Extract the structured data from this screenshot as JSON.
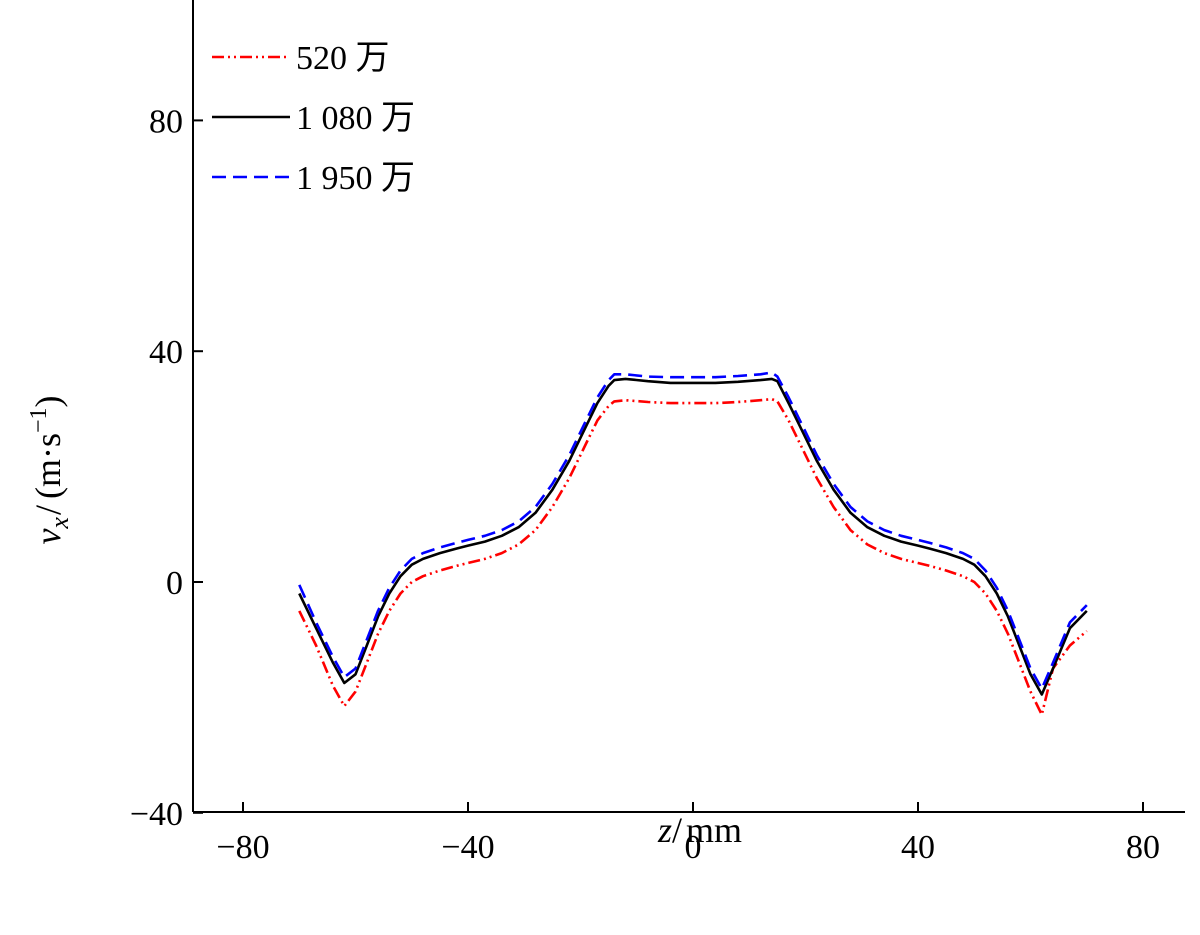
{
  "chart_data": {
    "type": "line",
    "title": "",
    "xlabel": {
      "var": "z",
      "sep": "/",
      "unit": "mm"
    },
    "ylabel": {
      "var": "v",
      "sub": "x",
      "sep": "/",
      "unit_open": "(m·s",
      "unit_exp": "−1",
      "unit_close": ")"
    },
    "xlim": [
      -90,
      90
    ],
    "ylim": [
      -40,
      100
    ],
    "xticks": [
      -80,
      -40,
      0,
      40,
      80
    ],
    "xtick_labels": [
      "−80",
      "−40",
      "0",
      "40",
      "80"
    ],
    "yticks": [
      -40,
      0,
      40,
      80
    ],
    "ytick_labels": [
      "−40",
      "0",
      "40",
      "80"
    ],
    "grid": false,
    "legend_position": "top-left",
    "series": [
      {
        "name": "520 万",
        "color": "#ff0000",
        "dash": "dash-dot-dot",
        "x": [
          -70,
          -67,
          -64,
          -62,
          -60,
          -58,
          -56,
          -54,
          -52,
          -50,
          -48,
          -45,
          -42,
          -40,
          -37,
          -34,
          -31,
          -28,
          -25,
          -22,
          -19,
          -17,
          -15,
          -14,
          -12,
          -8,
          -4,
          0,
          4,
          8,
          12,
          14,
          15,
          17,
          19,
          22,
          25,
          28,
          31,
          34,
          37,
          40,
          42,
          45,
          48,
          50,
          52,
          54,
          56,
          58,
          60,
          62,
          64,
          67,
          70
        ],
        "y": [
          -5,
          -11,
          -18,
          -21.5,
          -19,
          -14,
          -9,
          -5,
          -2,
          0,
          1,
          2,
          2.8,
          3.3,
          4,
          5,
          6.5,
          9,
          13,
          18,
          24,
          28,
          30.5,
          31.3,
          31.5,
          31.2,
          31,
          31,
          31,
          31.2,
          31.5,
          31.7,
          31.3,
          28,
          24,
          18,
          13,
          9,
          6.5,
          5,
          4,
          3.3,
          2.8,
          2,
          1,
          0,
          -2,
          -5,
          -9,
          -14,
          -19,
          -23,
          -15,
          -11,
          -8.5
        ]
      },
      {
        "name": "1 080 万",
        "color": "#000000",
        "dash": "solid",
        "x": [
          -70,
          -67,
          -64,
          -62,
          -60,
          -58,
          -56,
          -54,
          -52,
          -50,
          -48,
          -45,
          -42,
          -40,
          -37,
          -34,
          -31,
          -28,
          -25,
          -22,
          -19,
          -17,
          -15,
          -14,
          -12,
          -8,
          -4,
          0,
          4,
          8,
          12,
          14,
          15,
          17,
          19,
          22,
          25,
          28,
          31,
          34,
          37,
          40,
          42,
          45,
          48,
          50,
          52,
          54,
          56,
          58,
          60,
          62,
          64,
          67,
          70
        ],
        "y": [
          -2,
          -8,
          -14,
          -17.5,
          -16,
          -11,
          -6,
          -2,
          1,
          3,
          4,
          5,
          5.8,
          6.3,
          7,
          8,
          9.5,
          12,
          16,
          21,
          27,
          31,
          34,
          35,
          35.2,
          34.8,
          34.5,
          34.5,
          34.5,
          34.7,
          35,
          35.2,
          34.8,
          31,
          27,
          21,
          16,
          12,
          9.5,
          8,
          7,
          6.3,
          5.8,
          5,
          4,
          3,
          1,
          -2,
          -6,
          -11,
          -16,
          -19.5,
          -15,
          -8,
          -5
        ]
      },
      {
        "name": "1 950 万",
        "color": "#0000ff",
        "dash": "dashed",
        "x": [
          -70,
          -67,
          -64,
          -62,
          -60,
          -58,
          -56,
          -54,
          -52,
          -50,
          -48,
          -45,
          -42,
          -40,
          -37,
          -34,
          -31,
          -28,
          -25,
          -22,
          -19,
          -17,
          -15,
          -14,
          -12,
          -8,
          -4,
          0,
          4,
          8,
          12,
          14,
          15,
          17,
          19,
          22,
          25,
          28,
          31,
          34,
          37,
          40,
          42,
          45,
          48,
          50,
          52,
          54,
          56,
          58,
          60,
          62,
          64,
          67,
          70
        ],
        "y": [
          -0.5,
          -7,
          -13,
          -16.5,
          -15,
          -10,
          -5,
          -1,
          2,
          4,
          5,
          6,
          6.8,
          7.3,
          8,
          9,
          10.5,
          13,
          17,
          22,
          28,
          32,
          35,
          36,
          36,
          35.6,
          35.5,
          35.5,
          35.5,
          35.7,
          36,
          36.3,
          35.6,
          32,
          28,
          22,
          17,
          13,
          10.5,
          9,
          8,
          7.3,
          6.8,
          6,
          5,
          4,
          2,
          -1,
          -5,
          -10,
          -15,
          -18.5,
          -14,
          -7,
          -4
        ]
      }
    ]
  }
}
